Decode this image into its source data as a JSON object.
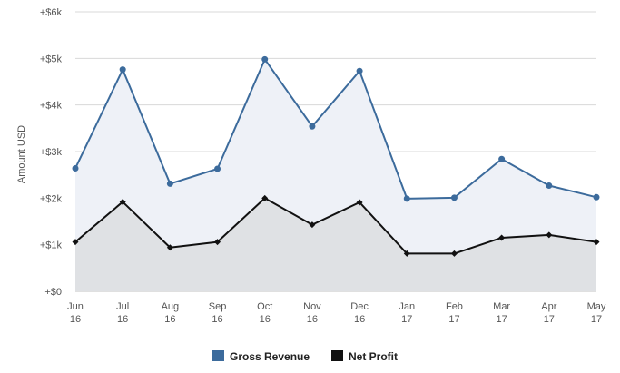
{
  "chart_data": {
    "type": "area",
    "ylabel": "Amount USD",
    "ylim": [
      0,
      6000
    ],
    "y_ticks": [
      0,
      1000,
      2000,
      3000,
      4000,
      5000,
      6000
    ],
    "y_tick_labels": [
      "+$0",
      "+$1k",
      "+$2k",
      "+$3k",
      "+$4k",
      "+$5k",
      "+$6k"
    ],
    "categories": [
      "Jun 16",
      "Jul 16",
      "Aug 16",
      "Sep 16",
      "Oct 16",
      "Nov 16",
      "Dec 16",
      "Jan 17",
      "Feb 17",
      "Mar 17",
      "Apr 17",
      "May 17"
    ],
    "series": [
      {
        "name": "Gross Revenue",
        "color": "#3c6b9c",
        "fill": "#eef1f7",
        "marker": "circle",
        "values": [
          2640,
          4760,
          2310,
          2630,
          4980,
          3540,
          4730,
          1990,
          2010,
          2840,
          2270,
          2020
        ]
      },
      {
        "name": "Net Profit",
        "color": "#111111",
        "fill": "#dfe1e4",
        "marker": "diamond",
        "values": [
          1060,
          1920,
          940,
          1060,
          2000,
          1430,
          1910,
          810,
          810,
          1150,
          1210,
          1060
        ]
      }
    ],
    "grid": true,
    "legend": "bottom-center"
  }
}
